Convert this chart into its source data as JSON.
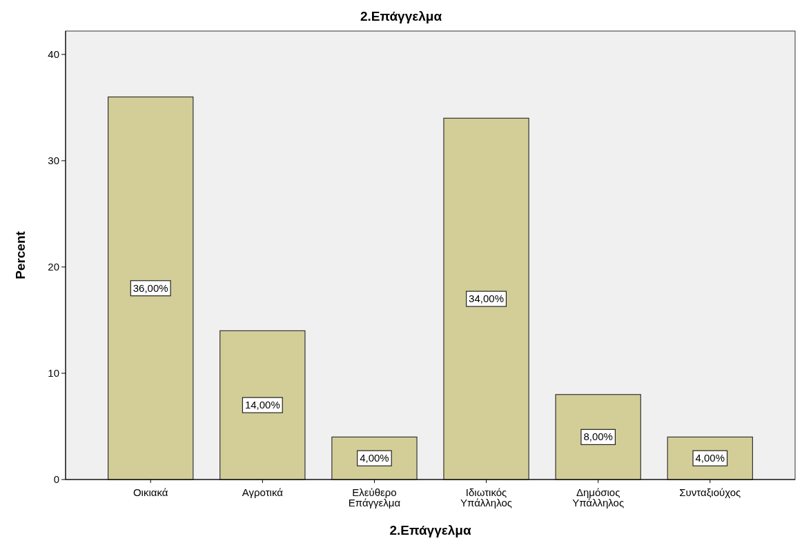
{
  "chart_data": {
    "type": "bar",
    "title": "2.Επάγγελμα",
    "xlabel": "2.Επάγγελμα",
    "ylabel": "Percent",
    "categories": [
      "Οικιακά",
      "Αγροτικά",
      "Ελεύθερο Επάγγελμα",
      "Ιδιωτικός Υπάλληλος",
      "Δημόσιος Υπάλληλος",
      "Συνταξιούχος"
    ],
    "values": [
      36,
      14,
      4,
      34,
      8,
      4
    ],
    "value_labels": [
      "36,00%",
      "14,00%",
      "4,00%",
      "34,00%",
      "8,00%",
      "4,00%"
    ],
    "color": "#d3ce97",
    "ylim": [
      0,
      42.2
    ],
    "yticks": [
      0,
      10,
      20,
      30,
      40
    ],
    "grid": false
  }
}
